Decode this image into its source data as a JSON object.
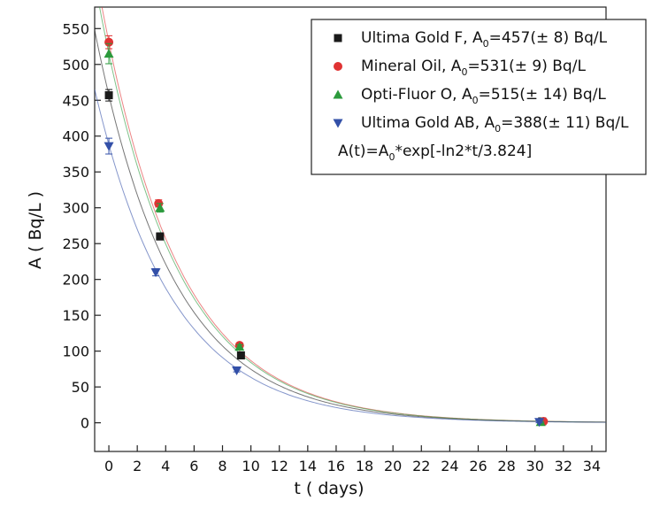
{
  "chart_data": {
    "type": "scatter",
    "xlabel": "t ( days)",
    "ylabel": "A ( Bq/L )",
    "xlim": [
      -1,
      35
    ],
    "ylim": [
      -40,
      580
    ],
    "xticks": [
      0,
      2,
      4,
      6,
      8,
      10,
      12,
      14,
      16,
      18,
      20,
      22,
      24,
      26,
      28,
      30,
      32,
      34
    ],
    "yticks": [
      0,
      50,
      100,
      150,
      200,
      250,
      300,
      350,
      400,
      450,
      500,
      550
    ],
    "legend": "upper right",
    "fit": {
      "half_life": 3.824,
      "formula_parts": [
        "A(t)=A",
        "0",
        "*exp[-ln2*t/3.824]"
      ]
    },
    "series": [
      {
        "name": "Ultima Gold F",
        "legend_parts": ",  A",
        "legend_sub": "0",
        "legend_rest": "=457(± 8) Bq/L",
        "a0": 457,
        "marker": "square",
        "color": "#1a1a1a",
        "x": [
          0,
          3.6,
          9.3,
          30.5
        ],
        "values": [
          457,
          260,
          94,
          2
        ],
        "errors": [
          8,
          5,
          3,
          1
        ]
      },
      {
        "name": "Mineral Oil",
        "legend_parts": ",  A",
        "legend_sub": "0",
        "legend_rest": "=531(± 9) Bq/L",
        "a0": 531,
        "marker": "circle",
        "color": "#e03333",
        "x": [
          0,
          3.5,
          9.2,
          30.6
        ],
        "values": [
          531,
          306,
          108,
          2
        ],
        "errors": [
          9,
          5,
          3,
          1
        ]
      },
      {
        "name": "Opti-Fluor O",
        "legend_parts": ",  A",
        "legend_sub": "0",
        "legend_rest": "=515(± 14) Bq/L",
        "a0": 515,
        "marker": "triangle",
        "color": "#2b9a3c",
        "x": [
          0,
          3.6,
          9.2,
          30.4
        ],
        "values": [
          515,
          300,
          106,
          1
        ],
        "errors": [
          14,
          6,
          3,
          1
        ]
      },
      {
        "name": "Ultima Gold AB",
        "legend_parts": ",  A",
        "legend_sub": "0",
        "legend_rest": "=388(± 11) Bq/L",
        "a0": 388,
        "marker": "triangle-down",
        "color": "#3350a8",
        "x": [
          0,
          3.3,
          9.0,
          30.3
        ],
        "values": [
          386,
          210,
          73,
          1
        ],
        "errors": [
          11,
          5,
          2,
          1
        ]
      }
    ]
  }
}
